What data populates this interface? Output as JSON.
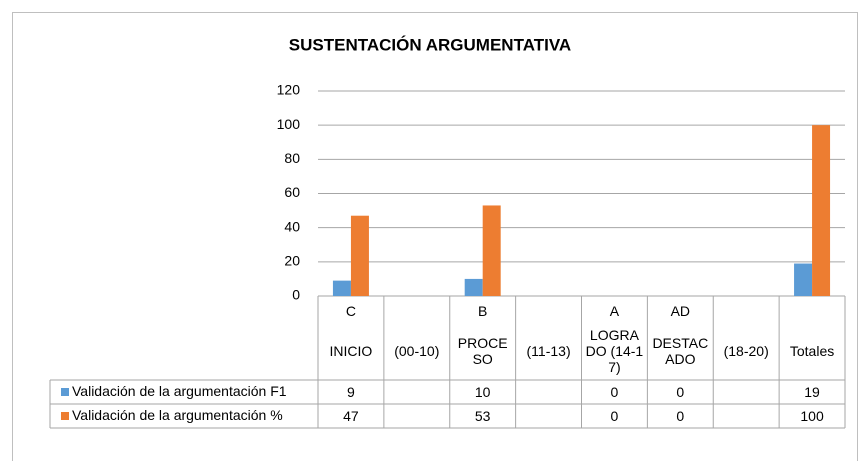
{
  "chart_data": {
    "type": "bar",
    "title": "SUSTENTACIÓN ARGUMENTATIVA",
    "category_groups": [
      "C",
      null,
      "B",
      null,
      "A",
      "AD",
      null,
      null
    ],
    "categories": [
      "INICIO",
      "(00-10)",
      "PROCESO",
      "(11-13)",
      "LOGRADO (14-17)",
      "DESTACADO",
      "(18-20)",
      "Totales"
    ],
    "series": [
      {
        "name": "Validación de la argumentación F1",
        "color": "#5b9bd5",
        "values": [
          9,
          null,
          10,
          null,
          0,
          0,
          null,
          19
        ]
      },
      {
        "name": "Validación de la argumentación %",
        "color": "#ed7d31",
        "values": [
          47,
          null,
          53,
          null,
          0,
          0,
          null,
          100
        ]
      }
    ],
    "ylim": [
      0,
      120
    ],
    "yticks": [
      0,
      20,
      40,
      60,
      80,
      100,
      120
    ],
    "grid": true,
    "data_table": true
  }
}
